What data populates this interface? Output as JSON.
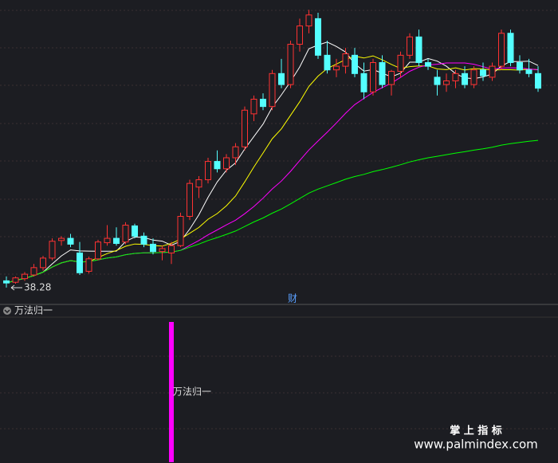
{
  "chart_data": [
    {
      "type": "candlestick",
      "ylim": [
        37.5,
        77
      ],
      "up_color": "#ff3232",
      "down_color": "#54ffff",
      "candles": [
        [
          39.2,
          39.8,
          38.28,
          38.9
        ],
        [
          39.0,
          39.8,
          38.8,
          39.6
        ],
        [
          39.5,
          40.4,
          39.2,
          40.1
        ],
        [
          40.0,
          41.5,
          39.8,
          41.0
        ],
        [
          41.0,
          42.6,
          40.6,
          42.3
        ],
        [
          42.3,
          45.0,
          42.0,
          44.6
        ],
        [
          44.7,
          45.3,
          44.0,
          45.0
        ],
        [
          45.0,
          45.6,
          43.8,
          44.2
        ],
        [
          43.0,
          44.5,
          40.0,
          40.3
        ],
        [
          40.5,
          42.5,
          40.2,
          42.2
        ],
        [
          42.2,
          44.8,
          42.0,
          44.5
        ],
        [
          44.4,
          46.8,
          44.0,
          45.0
        ],
        [
          45.0,
          46.5,
          44.0,
          44.3
        ],
        [
          44.5,
          47.2,
          44.2,
          46.8
        ],
        [
          46.7,
          47.0,
          45.0,
          45.3
        ],
        [
          45.3,
          45.8,
          43.8,
          44.2
        ],
        [
          44.2,
          45.0,
          42.8,
          43.2
        ],
        [
          43.2,
          44.0,
          42.0,
          43.6
        ],
        [
          43.0,
          44.5,
          41.5,
          44.0
        ],
        [
          44.0,
          48.5,
          43.8,
          48.0
        ],
        [
          48.0,
          53.0,
          47.5,
          52.5
        ],
        [
          52.0,
          53.5,
          50.5,
          53.0
        ],
        [
          53.0,
          56.0,
          52.5,
          55.5
        ],
        [
          55.5,
          57.0,
          54.0,
          54.5
        ],
        [
          54.5,
          56.5,
          54.0,
          56.0
        ],
        [
          56.0,
          58.0,
          55.0,
          57.5
        ],
        [
          57.5,
          63.0,
          57.0,
          62.5
        ],
        [
          62.0,
          64.5,
          61.0,
          64.0
        ],
        [
          64.0,
          64.8,
          62.5,
          63.0
        ],
        [
          63.0,
          68.0,
          62.5,
          67.5
        ],
        [
          67.5,
          69.5,
          65.5,
          66.0
        ],
        [
          66.0,
          72.0,
          65.5,
          71.5
        ],
        [
          71.5,
          75.0,
          70.5,
          74.0
        ],
        [
          74.0,
          76.2,
          73.0,
          75.5
        ],
        [
          75.0,
          75.8,
          69.5,
          70.0
        ],
        [
          70.0,
          72.0,
          67.5,
          68.0
        ],
        [
          68.0,
          69.5,
          67.0,
          68.5
        ],
        [
          68.5,
          71.0,
          67.5,
          70.2
        ],
        [
          70.0,
          71.0,
          67.0,
          67.5
        ],
        [
          67.5,
          69.0,
          64.0,
          65.0
        ],
        [
          65.0,
          69.5,
          64.5,
          69.0
        ],
        [
          69.0,
          70.0,
          65.5,
          66.0
        ],
        [
          66.0,
          68.0,
          64.5,
          67.8
        ],
        [
          67.8,
          70.5,
          67.0,
          70.0
        ],
        [
          70.0,
          73.0,
          69.5,
          72.5
        ],
        [
          72.5,
          73.5,
          68.5,
          69.0
        ],
        [
          69.0,
          69.5,
          68.0,
          68.5
        ],
        [
          67.0,
          68.0,
          64.5,
          66.0
        ],
        [
          66.0,
          67.5,
          65.0,
          66.5
        ],
        [
          66.5,
          68.0,
          65.5,
          67.5
        ],
        [
          67.5,
          68.5,
          65.5,
          66.0
        ],
        [
          66.0,
          68.5,
          65.5,
          68.0
        ],
        [
          68.0,
          69.0,
          66.5,
          67.2
        ],
        [
          67.0,
          69.0,
          66.5,
          68.5
        ],
        [
          68.5,
          73.5,
          68.0,
          73.0
        ],
        [
          73.0,
          73.5,
          68.5,
          69.0
        ],
        [
          69.0,
          70.0,
          67.5,
          68.0
        ],
        [
          68.0,
          69.5,
          67.0,
          67.5
        ],
        [
          67.5,
          68.5,
          65.0,
          65.5
        ]
      ],
      "moving_averages": [
        {
          "period": 5,
          "color": "#ffffff"
        },
        {
          "period": 10,
          "color": "#ffff00"
        },
        {
          "period": 20,
          "color": "#ff00ff"
        },
        {
          "period": 60,
          "color": "#00ff00"
        }
      ],
      "low_label": 38.28,
      "marker": "财"
    },
    {
      "type": "bar",
      "title": "万法归一",
      "label": "万法归一",
      "ylim": [
        0,
        1
      ],
      "color": "#ff00ff",
      "signals": [
        {
          "index": 18,
          "value": 1
        }
      ]
    }
  ],
  "watermark": {
    "title": "掌 上 指 标",
    "url": "www.palmindex.com"
  }
}
